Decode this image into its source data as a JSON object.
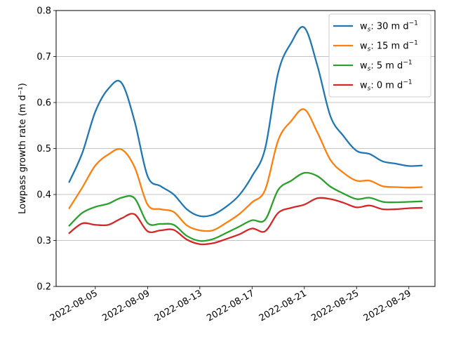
{
  "chart_data": {
    "type": "line",
    "title": "",
    "xlabel": "",
    "ylabel": "Lowpass growth rate (m d⁻¹)",
    "ylim": [
      0.2,
      0.8
    ],
    "xlim": [
      "2022-08-02",
      "2022-08-31"
    ],
    "y_ticks": [
      0.2,
      0.3,
      0.4,
      0.5,
      0.6,
      0.7,
      0.8
    ],
    "y_tick_labels": [
      "0.2",
      "0.3",
      "0.4",
      "0.5",
      "0.6",
      "0.7",
      "0.8"
    ],
    "x_ticks": [
      "2022-08-05",
      "2022-08-09",
      "2022-08-13",
      "2022-08-17",
      "2022-08-21",
      "2022-08-25",
      "2022-08-29"
    ],
    "x_tick_labels": [
      "2022-08-05",
      "2022-08-09",
      "2022-08-13",
      "2022-08-17",
      "2022-08-21",
      "2022-08-25",
      "2022-08-29"
    ],
    "grid": "horizontal",
    "legend_position": "top-right",
    "x": [
      "2022-08-03",
      "2022-08-04",
      "2022-08-05",
      "2022-08-06",
      "2022-08-07",
      "2022-08-08",
      "2022-08-09",
      "2022-08-10",
      "2022-08-11",
      "2022-08-12",
      "2022-08-13",
      "2022-08-14",
      "2022-08-15",
      "2022-08-16",
      "2022-08-17",
      "2022-08-18",
      "2022-08-19",
      "2022-08-20",
      "2022-08-21",
      "2022-08-22",
      "2022-08-23",
      "2022-08-24",
      "2022-08-25",
      "2022-08-26",
      "2022-08-27",
      "2022-08-28",
      "2022-08-29",
      "2022-08-30"
    ],
    "series": [
      {
        "name": "wₛ:  30 m d⁻¹",
        "label_main": "w",
        "label_sub": "s",
        "label_rest": ":  30 m d",
        "label_sup": "−1",
        "color": "#1f77b4",
        "values": [
          0.427,
          0.49,
          0.58,
          0.63,
          0.643,
          0.56,
          0.44,
          0.418,
          0.4,
          0.368,
          0.353,
          0.356,
          0.373,
          0.398,
          0.44,
          0.5,
          0.665,
          0.73,
          0.763,
          0.68,
          0.57,
          0.527,
          0.495,
          0.488,
          0.472,
          0.467,
          0.462,
          0.463
        ]
      },
      {
        "name": "wₛ:  15 m d⁻¹",
        "label_main": "w",
        "label_sub": "s",
        "label_rest": ":  15 m d",
        "label_sup": "−1",
        "color": "#ff7f0e",
        "values": [
          0.37,
          0.415,
          0.463,
          0.487,
          0.498,
          0.46,
          0.378,
          0.368,
          0.362,
          0.333,
          0.322,
          0.322,
          0.338,
          0.357,
          0.383,
          0.41,
          0.518,
          0.56,
          0.585,
          0.535,
          0.475,
          0.447,
          0.43,
          0.43,
          0.418,
          0.416,
          0.415,
          0.416
        ]
      },
      {
        "name": "wₛ:  5 m d⁻¹",
        "label_main": "w",
        "label_sub": "s",
        "label_rest": ":  5 m d",
        "label_sup": "−1",
        "color": "#2ca02c",
        "values": [
          0.332,
          0.36,
          0.373,
          0.38,
          0.393,
          0.392,
          0.338,
          0.336,
          0.334,
          0.31,
          0.299,
          0.303,
          0.316,
          0.33,
          0.344,
          0.345,
          0.41,
          0.43,
          0.447,
          0.44,
          0.417,
          0.402,
          0.39,
          0.393,
          0.384,
          0.383,
          0.384,
          0.385
        ]
      },
      {
        "name": "wₛ:  0 m d⁻¹",
        "label_main": "w",
        "label_sub": "s",
        "label_rest": ":  0 m d",
        "label_sup": "−1",
        "color": "#d62728",
        "values": [
          0.316,
          0.337,
          0.334,
          0.334,
          0.348,
          0.357,
          0.32,
          0.322,
          0.323,
          0.302,
          0.292,
          0.294,
          0.303,
          0.313,
          0.326,
          0.32,
          0.36,
          0.371,
          0.378,
          0.392,
          0.39,
          0.382,
          0.372,
          0.376,
          0.368,
          0.368,
          0.37,
          0.371
        ]
      }
    ]
  }
}
